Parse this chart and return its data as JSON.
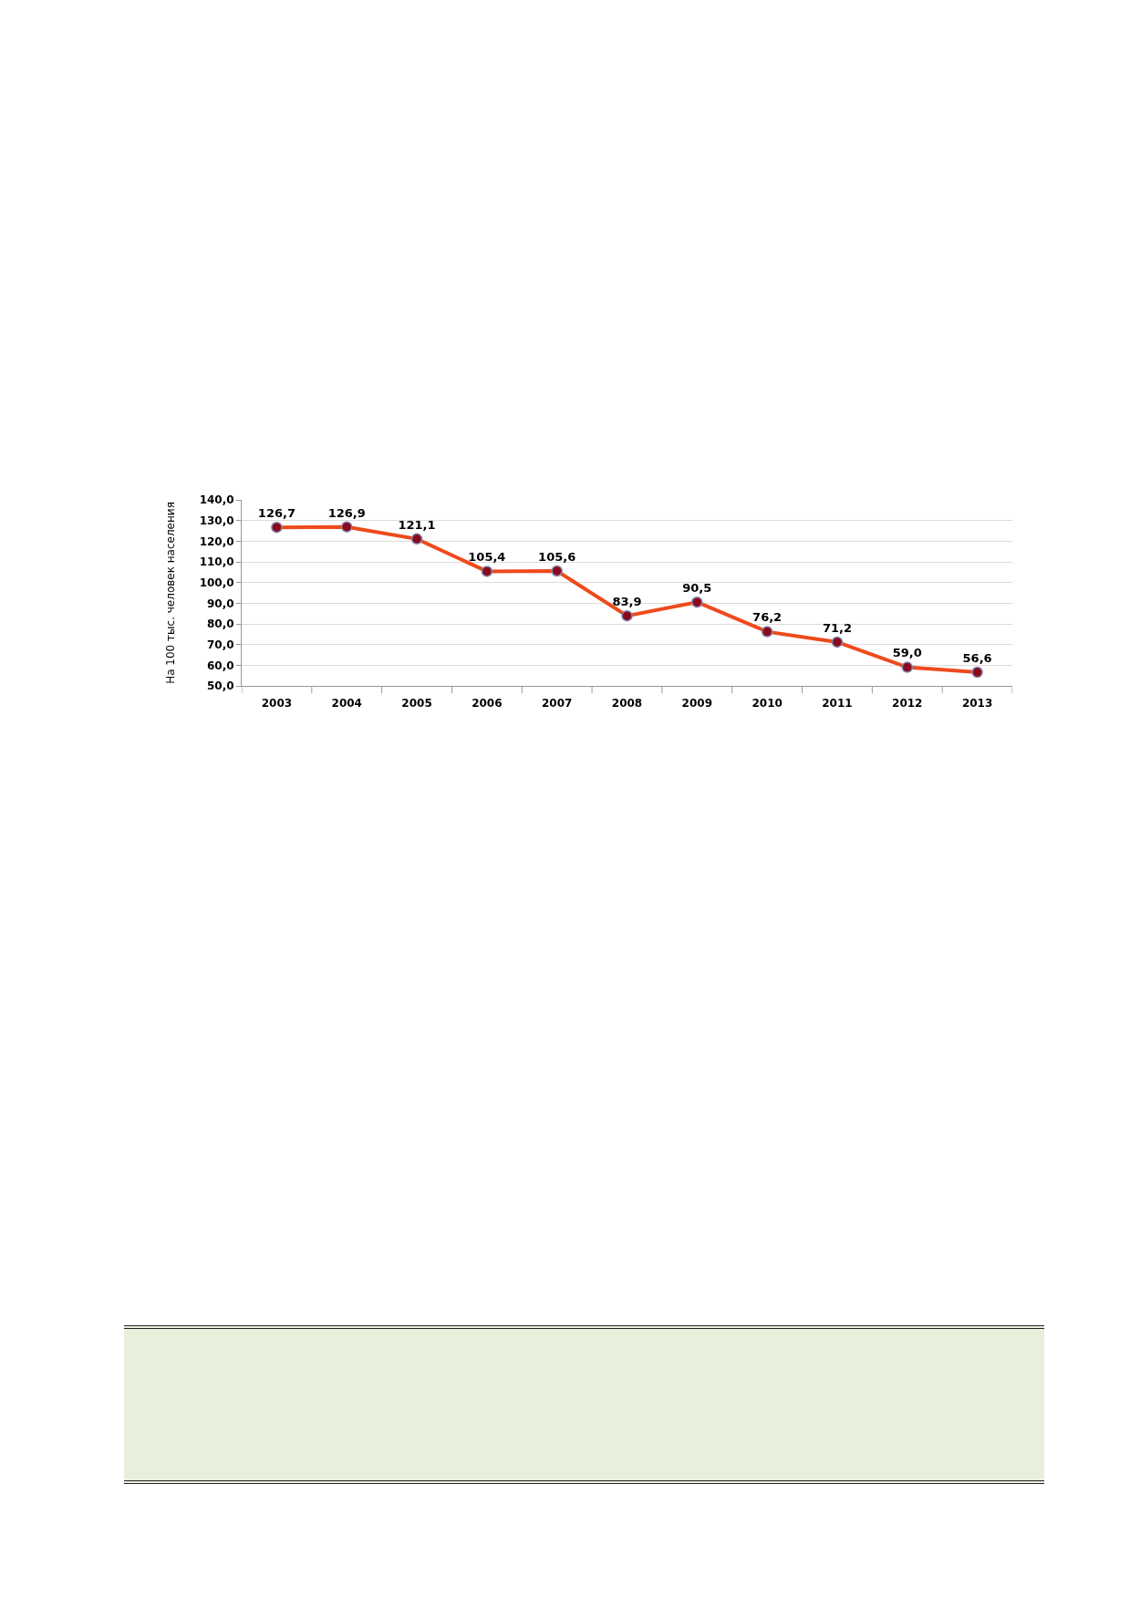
{
  "chart_data": {
    "type": "line",
    "ylabel": "На 100 тыс. человек населения",
    "categories": [
      "2003",
      "2004",
      "2005",
      "2006",
      "2007",
      "2008",
      "2009",
      "2010",
      "2011",
      "2012",
      "2013"
    ],
    "series": [
      {
        "color": "#ee4a1c",
        "values": [
          126.7,
          126.9,
          121.1,
          105.4,
          105.6,
          83.9,
          90.5,
          76.2,
          71.2,
          59.0,
          56.6
        ],
        "value_labels": [
          "126,7",
          "126,9",
          "121,1",
          "105,4",
          "105,6",
          "83,9",
          "90,5",
          "76,2",
          "71,2",
          "59,0",
          "56,6"
        ]
      }
    ],
    "ylim": [
      50,
      140
    ],
    "yticks": [
      {
        "value": 50,
        "label": "50,0"
      },
      {
        "value": 60,
        "label": "60,0"
      },
      {
        "value": 70,
        "label": "70,0"
      },
      {
        "value": 80,
        "label": "80,0"
      },
      {
        "value": 90,
        "label": "90,0"
      },
      {
        "value": 100,
        "label": "100,0"
      },
      {
        "value": 110,
        "label": "110,0"
      },
      {
        "value": 120,
        "label": "120,0"
      },
      {
        "value": 130,
        "label": "130,0"
      },
      {
        "value": 140,
        "label": "140,0"
      }
    ],
    "grid": "y",
    "marker": "circle",
    "line_style": "solid"
  }
}
